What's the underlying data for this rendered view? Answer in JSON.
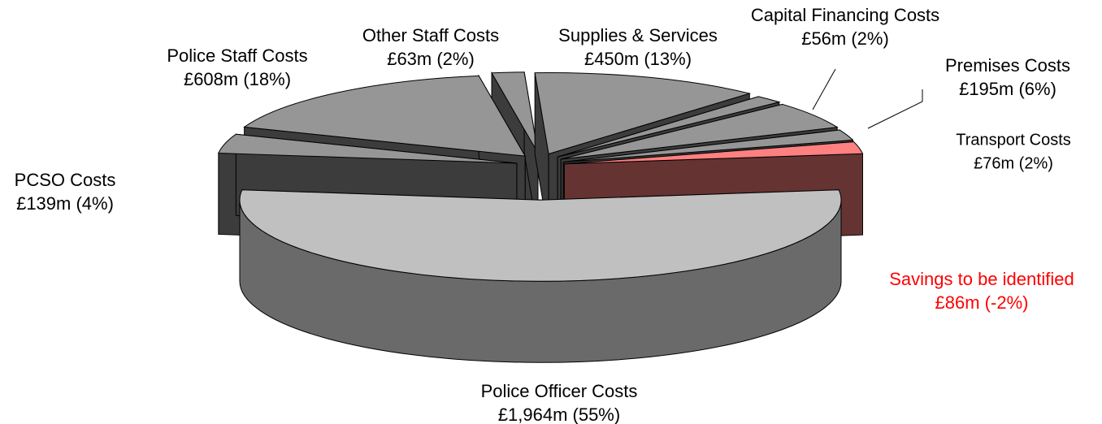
{
  "chart_data": {
    "type": "pie",
    "categories": [
      "Police Officer Costs",
      "PCSO Costs",
      "Police Staff Costs",
      "Other Staff Costs",
      "Supplies & Services",
      "Capital Financing Costs",
      "Premises Costs",
      "Transport Costs",
      "Savings to be identified"
    ],
    "values": [
      1964,
      139,
      608,
      63,
      450,
      56,
      195,
      76,
      -86
    ],
    "value_labels": [
      "£1,964m (55%)",
      "£139m (4%)",
      "£608m (18%)",
      "£63m (2%)",
      "£450m (13%)",
      "£56m (2%)",
      "£195m (6%)",
      "£76m (2%)",
      "£86m (-2%)"
    ],
    "colors": [
      "#c0c0c0",
      "#969696",
      "#969696",
      "#969696",
      "#969696",
      "#969696",
      "#969696",
      "#969696",
      "#ff8080"
    ],
    "label_colors": [
      "#000000",
      "#000000",
      "#000000",
      "#000000",
      "#000000",
      "#000000",
      "#000000",
      "#000000",
      "#ff0000"
    ]
  }
}
